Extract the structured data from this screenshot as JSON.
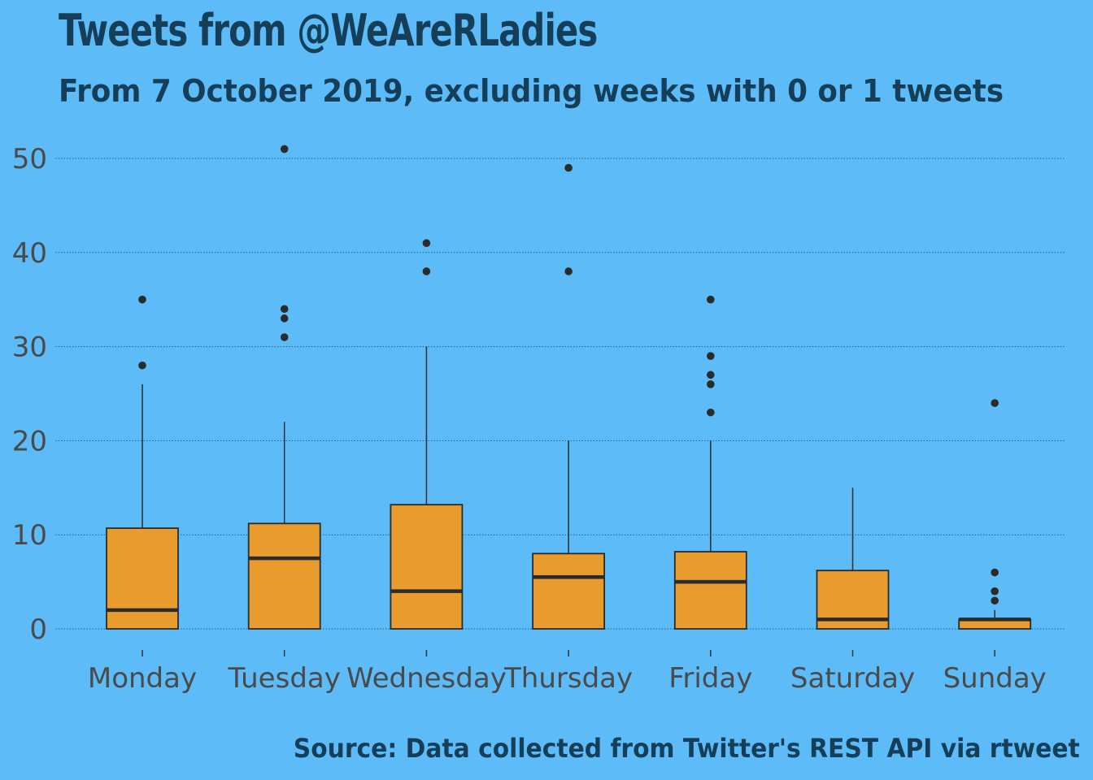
{
  "page": {
    "background": "#5dbcf8"
  },
  "chart_data": {
    "type": "box",
    "title": "Tweets from @WeAreRLadies",
    "subtitle": "From 7 October 2019, excluding weeks with 0 or 1 tweets",
    "caption": "Source: Data collected from Twitter's REST API via rtweet",
    "xlabel": "",
    "ylabel": "",
    "ylim": [
      -2,
      53
    ],
    "y_ticks": [
      0,
      10,
      20,
      30,
      40,
      50
    ],
    "grid": "horizontal-dotted",
    "legend": "none",
    "colors": {
      "box_fill": "#e99c2e",
      "box_stroke": "#2b2b2b",
      "text": "#153e58",
      "tick_text": "#4a4a4a",
      "grid": "#1e5f87"
    },
    "categories": [
      "Monday",
      "Tuesday",
      "Wednesday",
      "Thursday",
      "Friday",
      "Saturday",
      "Sunday"
    ],
    "boxes": [
      {
        "category": "Monday",
        "q1": 0,
        "median": 2,
        "q3": 10.7,
        "whisker_low": 0,
        "whisker_high": 26,
        "outliers": [
          28,
          35
        ]
      },
      {
        "category": "Tuesday",
        "q1": 0,
        "median": 7.5,
        "q3": 11.2,
        "whisker_low": 0,
        "whisker_high": 22,
        "outliers": [
          31,
          33,
          34,
          51
        ]
      },
      {
        "category": "Wednesday",
        "q1": 0,
        "median": 4,
        "q3": 13.2,
        "whisker_low": 0,
        "whisker_high": 30,
        "outliers": [
          38,
          41
        ]
      },
      {
        "category": "Thursday",
        "q1": 0,
        "median": 5.5,
        "q3": 8,
        "whisker_low": 0,
        "whisker_high": 20,
        "outliers": [
          38,
          49
        ]
      },
      {
        "category": "Friday",
        "q1": 0,
        "median": 5,
        "q3": 8.2,
        "whisker_low": 0,
        "whisker_high": 20,
        "outliers": [
          23,
          26,
          27,
          29,
          35
        ]
      },
      {
        "category": "Saturday",
        "q1": 0,
        "median": 1,
        "q3": 6.2,
        "whisker_low": 0,
        "whisker_high": 15,
        "outliers": []
      },
      {
        "category": "Sunday",
        "q1": 0,
        "median": 1,
        "q3": 1,
        "whisker_low": 0,
        "whisker_high": 2,
        "outliers": [
          3,
          4,
          6,
          24
        ]
      }
    ]
  }
}
